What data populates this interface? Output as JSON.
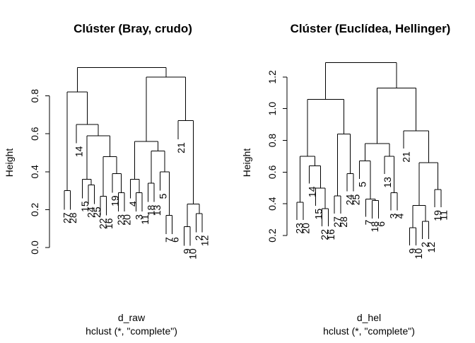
{
  "chart_data": [
    {
      "type": "dendrogram",
      "title": "Clúster (Bray, crudo)",
      "ylabel": "Height",
      "xlabel": "d_raw",
      "sub": "hclust (*, \"complete\")",
      "ylim": [
        0,
        1.0
      ],
      "yticks": [
        "0.0",
        "0.2",
        "0.4",
        "0.6",
        "0.8"
      ],
      "tree": [
        0.95,
        [
          0.82,
          [
            0.3,
            "27",
            "28"
          ],
          [
            0.65,
            "14",
            [
              0.59,
              [
                0.36,
                "15",
                [
                  0.33,
                  "24",
                  "25"
                ]
              ],
              [
                0.48,
                [
                  0.27,
                  "22",
                  "16"
                ],
                [
                  0.39,
                  "19",
                  [
                    0.29,
                    "23",
                    "20"
                  ]
                ]
              ]
            ]
          ]
        ],
        [
          0.9,
          [
            0.56,
            [
              0.36,
              "4",
              [
                0.29,
                "3",
                "11"
              ]
            ],
            [
              0.51,
              [
                0.34,
                "18",
                "13"
              ],
              [
                0.4,
                "5",
                [
                  0.17,
                  "7",
                  "6"
                ]
              ]
            ]
          ],
          [
            0.67,
            "21",
            [
              0.23,
              [
                0.11,
                "9",
                "10"
              ],
              [
                0.18,
                "2",
                "12"
              ]
            ]
          ]
        ]
      ]
    },
    {
      "type": "dendrogram",
      "title": "Clúster (Euclídea, Hellinger)",
      "ylabel": "Height",
      "xlabel": "d_hel",
      "sub": "hclust (*, \"complete\")",
      "ylim": [
        0.2,
        1.32
      ],
      "yticks": [
        "0.2",
        "0.4",
        "0.6",
        "0.8",
        "1.0",
        "1.2"
      ],
      "tree": [
        1.29,
        [
          1.06,
          [
            0.7,
            [
              0.41,
              "23",
              "20"
            ],
            [
              0.64,
              "14",
              [
                0.5,
                "15",
                [
                  0.37,
                  "22",
                  "16"
                ]
              ]
            ]
          ],
          [
            0.84,
            [
              0.45,
              "27",
              "28"
            ],
            [
              0.59,
              "24",
              "25"
            ]
          ]
        ],
        [
          1.13,
          [
            0.78,
            [
              0.67,
              "5",
              [
                0.43,
                "7",
                [
                  0.42,
                  "18",
                  "6"
                ]
              ]
            ],
            [
              0.7,
              "13",
              [
                0.47,
                "3",
                "4"
              ]
            ]
          ],
          [
            0.86,
            "21",
            [
              0.66,
              [
                0.39,
                [
                  0.25,
                  "9",
                  "10"
                ],
                [
                  0.29,
                  "2",
                  "12"
                ]
              ],
              [
                0.49,
                "19",
                "11"
              ]
            ]
          ]
        ]
      ]
    }
  ]
}
